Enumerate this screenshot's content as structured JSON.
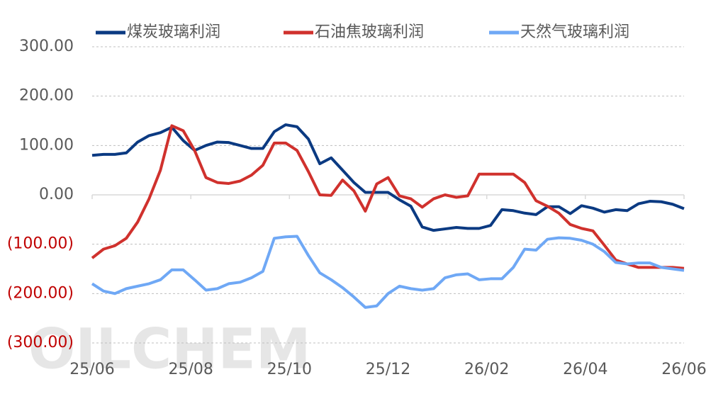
{
  "chart_data": {
    "type": "line",
    "watermark": "OILCHEM",
    "x": [
      0,
      1,
      2,
      3,
      4,
      5,
      6,
      7,
      8,
      9,
      10,
      11,
      12,
      13,
      14,
      15,
      16,
      17,
      18,
      19,
      20,
      21,
      22,
      23,
      24,
      25,
      26,
      27,
      28,
      29,
      30,
      31,
      32,
      33,
      34,
      35,
      36,
      37,
      38,
      39,
      40,
      41,
      42,
      43,
      44,
      45,
      46,
      47,
      48,
      49,
      50,
      51,
      52
    ],
    "xlim": [
      0,
      52
    ],
    "xticks": [
      {
        "value": 0,
        "label": "25/06"
      },
      {
        "value": 8.67,
        "label": "25/08"
      },
      {
        "value": 17.33,
        "label": "25/10"
      },
      {
        "value": 26,
        "label": "25/12"
      },
      {
        "value": 34.67,
        "label": "26/02"
      },
      {
        "value": 43.33,
        "label": "26/04"
      },
      {
        "value": 52,
        "label": "26/06"
      }
    ],
    "ylim": [
      -300,
      300
    ],
    "yticks": [
      {
        "value": 300,
        "label": "300.00"
      },
      {
        "value": 200,
        "label": "200.00"
      },
      {
        "value": 100,
        "label": "100.00"
      },
      {
        "value": 0,
        "label": "0.00"
      },
      {
        "value": -100,
        "label": "(100.00)"
      },
      {
        "value": -200,
        "label": "(200.00)"
      },
      {
        "value": -300,
        "label": "(300.00)"
      }
    ],
    "grid": true,
    "legend": "top",
    "series": [
      {
        "name": "煤炭玻璃利润",
        "color": "#0b3a82",
        "values": [
          80,
          82,
          82,
          85,
          107,
          120,
          126,
          137,
          110,
          90,
          100,
          107,
          106,
          100,
          94,
          94,
          128,
          142,
          138,
          113,
          63,
          75,
          50,
          25,
          5,
          5,
          5,
          -10,
          -23,
          -65,
          -72,
          -69,
          -66,
          -68,
          -68,
          -62,
          -30,
          -32,
          -37,
          -40,
          -24,
          -24,
          -38,
          -22,
          -27,
          -35,
          -30,
          -32,
          -18,
          -13,
          -14,
          -19,
          -28
        ]
      },
      {
        "name": "石油焦玻璃利润",
        "color": "#d0312d",
        "values": [
          -128,
          -110,
          -103,
          -88,
          -55,
          -8,
          50,
          140,
          130,
          90,
          35,
          25,
          23,
          28,
          40,
          60,
          105,
          105,
          90,
          47,
          0,
          -1,
          30,
          8,
          -33,
          22,
          35,
          -2,
          -8,
          -25,
          -8,
          0,
          -5,
          -2,
          42,
          42,
          42,
          42,
          25,
          -12,
          -23,
          -37,
          -60,
          -68,
          -73,
          -102,
          -132,
          -140,
          -147,
          -147,
          -147,
          -147,
          -149
        ]
      },
      {
        "name": "天然气玻璃利润",
        "color": "#6fa8f5",
        "values": [
          -180,
          -195,
          -200,
          -190,
          -185,
          -180,
          -172,
          -152,
          -152,
          -172,
          -193,
          -190,
          -180,
          -177,
          -168,
          -155,
          -88,
          -85,
          -84,
          -123,
          -158,
          -172,
          -188,
          -207,
          -228,
          -225,
          -200,
          -185,
          -190,
          -193,
          -190,
          -168,
          -162,
          -160,
          -172,
          -170,
          -170,
          -147,
          -110,
          -112,
          -90,
          -87,
          -88,
          -92,
          -100,
          -115,
          -137,
          -140,
          -138,
          -138,
          -147,
          -150,
          -153
        ]
      }
    ]
  }
}
